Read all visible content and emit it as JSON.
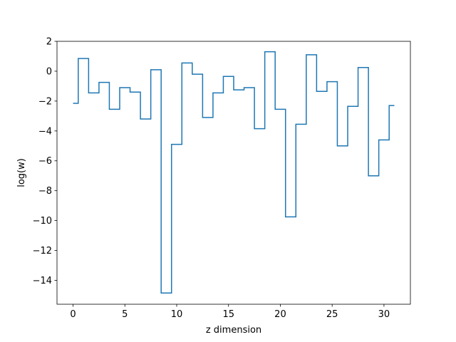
{
  "chart_data": {
    "type": "line",
    "style": "step-mid",
    "title": "",
    "xlabel": "z dimension",
    "ylabel": "log(w)",
    "xlim": [
      -1.55,
      32.55
    ],
    "ylim": [
      -15.6,
      2.0
    ],
    "xticks": [
      0,
      5,
      10,
      15,
      20,
      25,
      30
    ],
    "yticks": [
      -14,
      -12,
      -10,
      -8,
      -6,
      -4,
      -2,
      0,
      2
    ],
    "ytick_labels": [
      "−14",
      "−12",
      "−10",
      "−8",
      "−6",
      "−4",
      "−2",
      "0",
      "2"
    ],
    "grid": false,
    "series_color": "#1f77b4",
    "series": [
      {
        "x": [
          0,
          1,
          2,
          3,
          4,
          5,
          6,
          7,
          8,
          9,
          10,
          11,
          12,
          13,
          14,
          15,
          16,
          17,
          18,
          19,
          20,
          21,
          22,
          23,
          24,
          25,
          26,
          27,
          28,
          29,
          30,
          31
        ],
        "values": [
          -2.15,
          0.85,
          -1.45,
          -0.75,
          -2.55,
          -1.1,
          -1.4,
          -3.2,
          0.1,
          -14.85,
          -4.9,
          0.55,
          -0.2,
          -3.1,
          -1.45,
          -0.35,
          -1.25,
          -1.1,
          -3.85,
          1.3,
          -2.55,
          -9.75,
          -3.55,
          1.1,
          -1.35,
          -0.7,
          -5.0,
          -2.35,
          0.25,
          -7.0,
          -4.6,
          -2.3
        ]
      }
    ]
  }
}
